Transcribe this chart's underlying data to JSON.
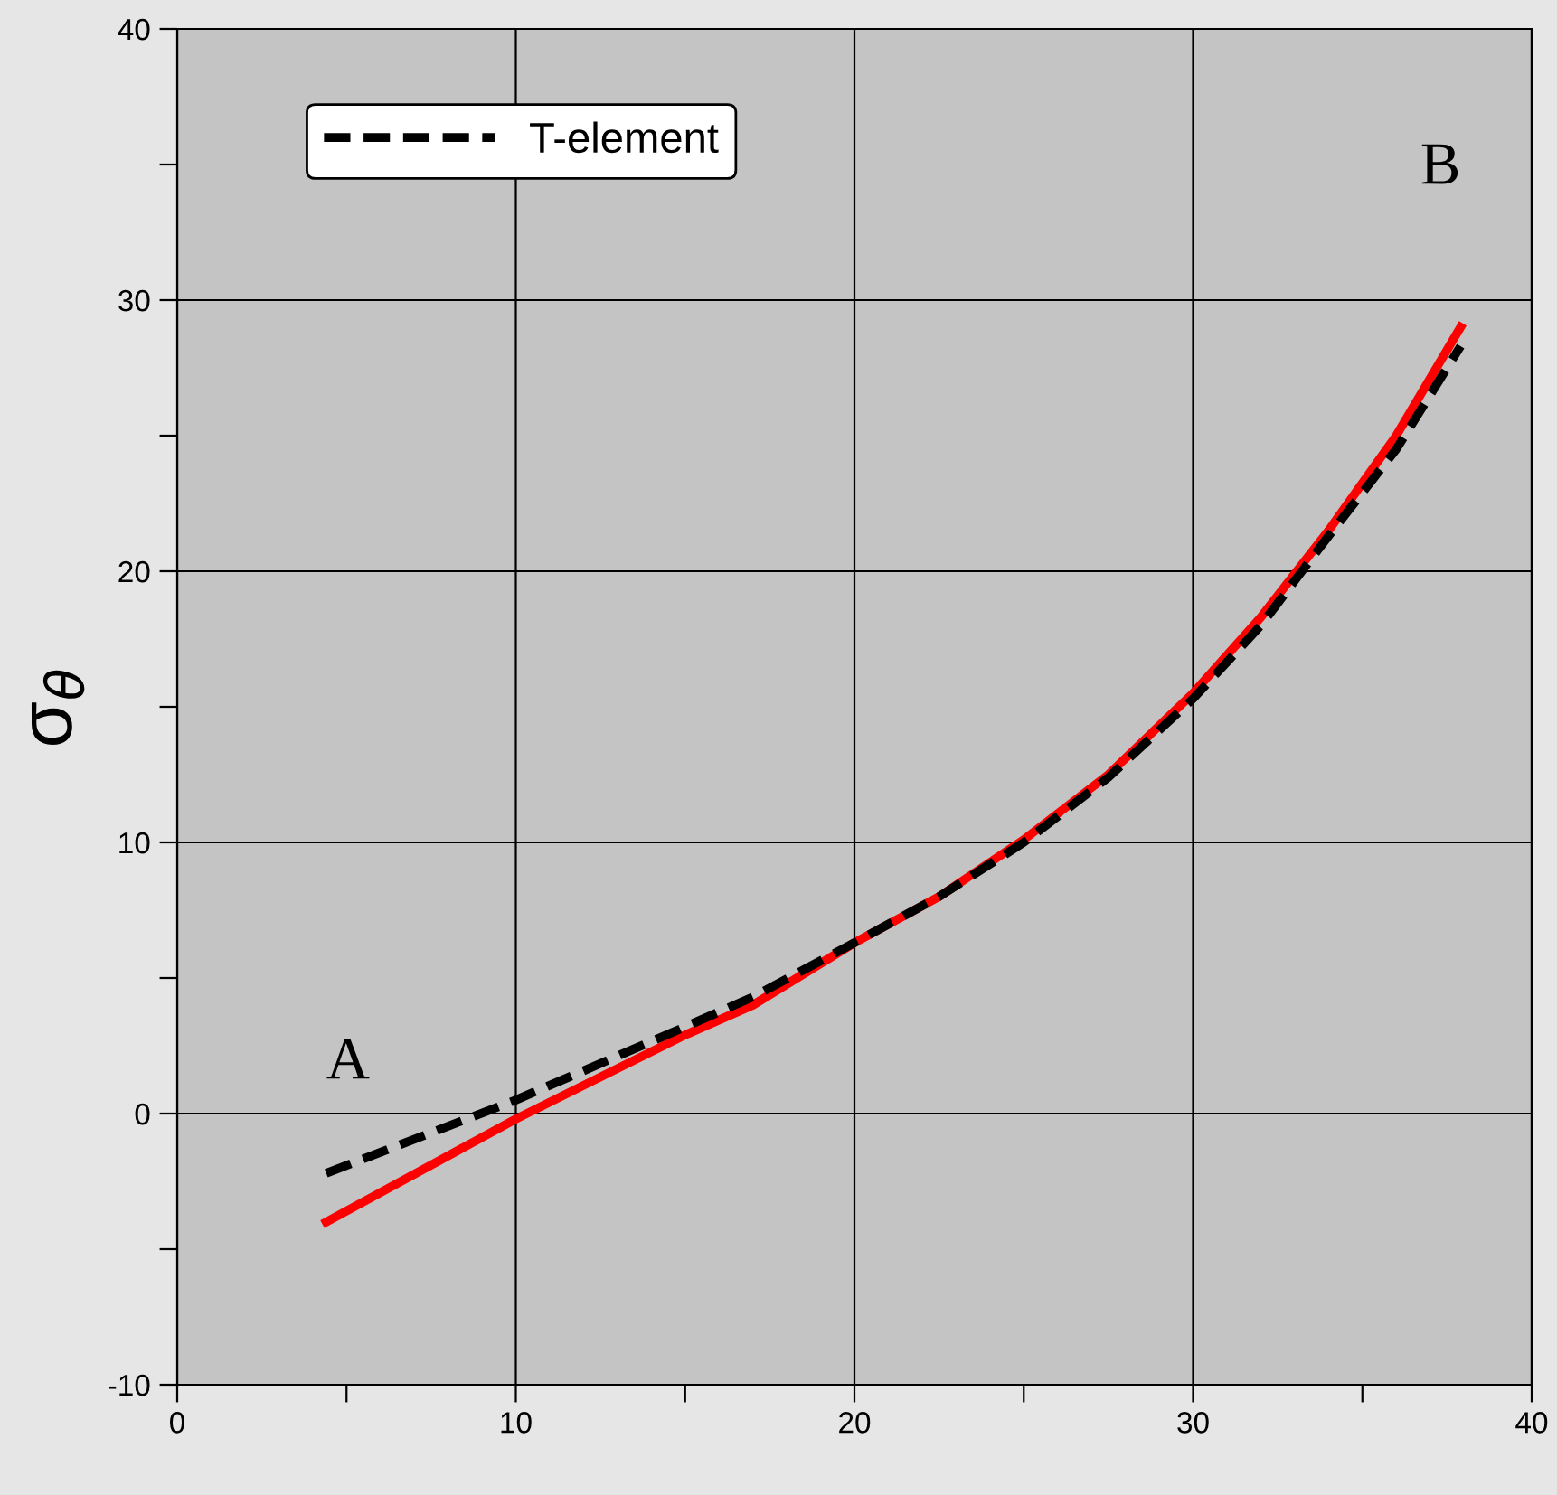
{
  "chart_data": {
    "type": "line",
    "ylabel": "σ$_{θ}$",
    "xlim": [
      0,
      40
    ],
    "ylim": [
      -10,
      40
    ],
    "xticks": [
      0,
      {
        "value": 5,
        "label": null
      },
      10,
      {
        "value": 15,
        "label": null
      },
      20,
      {
        "value": 25,
        "label": null
      },
      30,
      {
        "value": 35,
        "label": null
      },
      40
    ],
    "yticks": [
      -10,
      {
        "value": -5,
        "label": null
      },
      0,
      {
        "value": 5,
        "label": null
      },
      10,
      {
        "value": 15,
        "label": null
      },
      20,
      {
        "value": 25,
        "label": null
      },
      30,
      {
        "value": 35,
        "label": null
      },
      40
    ],
    "grid": true,
    "legend": "top left",
    "marker": "none",
    "series": [
      {
        "color": "#ff0000",
        "line_style": "solid",
        "x": [
          4.4,
          10,
          15,
          17,
          20,
          22.5,
          25,
          27.5,
          30,
          32,
          34,
          36,
          37.9
        ],
        "values": [
          -4,
          -0.2,
          2.9,
          4,
          6.3,
          8,
          10.1,
          12.5,
          15.5,
          18.3,
          21.5,
          25,
          29
        ]
      },
      {
        "name": "T-element",
        "color": "#000000",
        "line_style": "dashed",
        "x": [
          4.4,
          10,
          15,
          17,
          20,
          22.5,
          25,
          27.5,
          30,
          32,
          34,
          36,
          37.9
        ],
        "values": [
          -2.2,
          0.5,
          3.2,
          4.3,
          6.3,
          8,
          10,
          12.4,
          15.3,
          18,
          21.3,
          24.5,
          28.3
        ]
      }
    ],
    "annotations": [
      "A",
      "B"
    ]
  }
}
